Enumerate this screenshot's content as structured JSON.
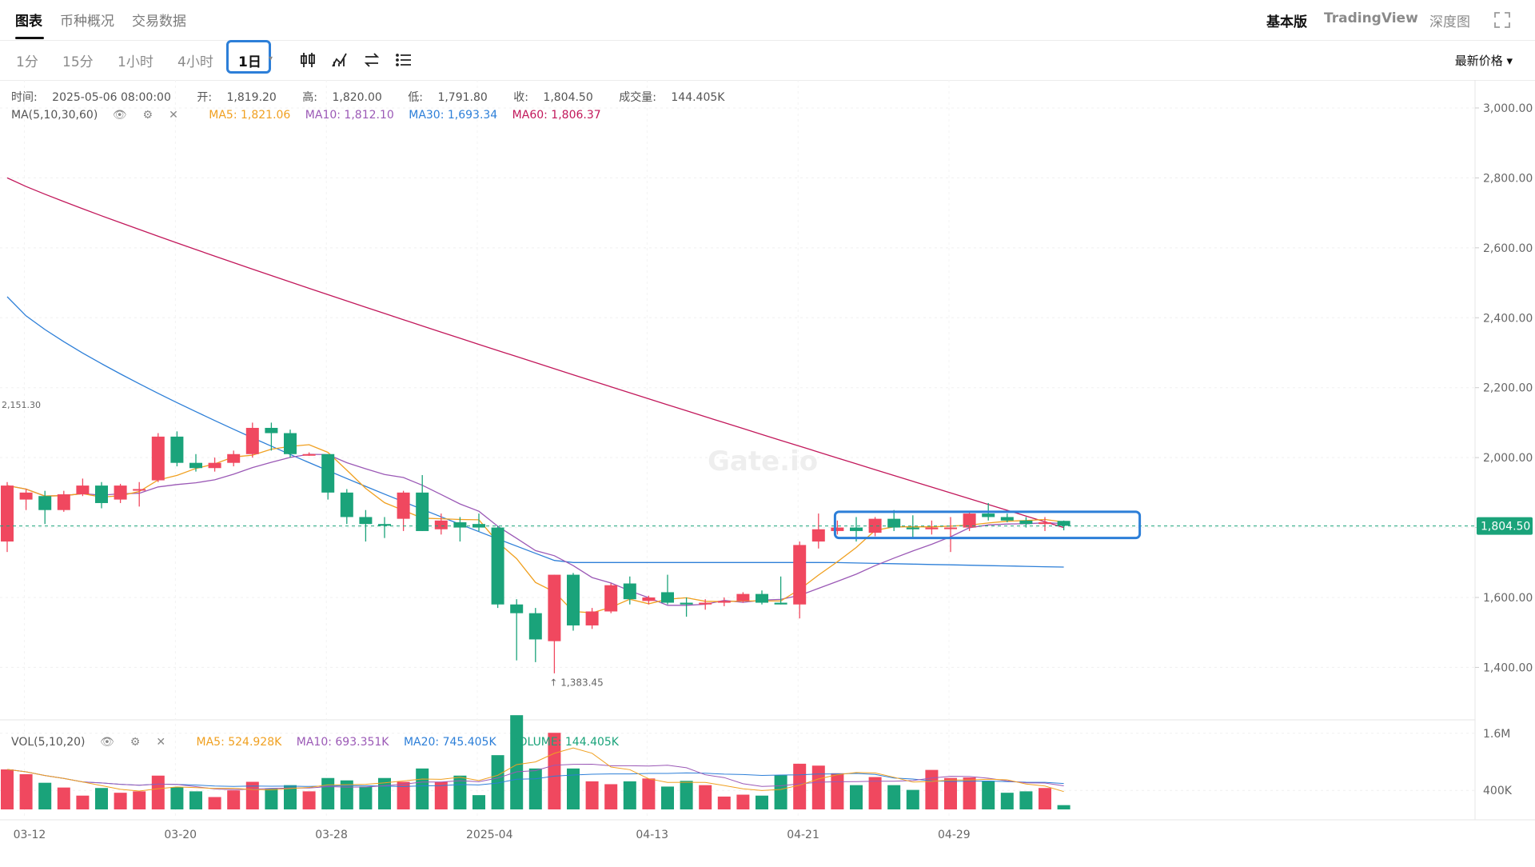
{
  "top_tabs": [
    "图表",
    "币种概况",
    "交易数据"
  ],
  "top_right": [
    "基本版",
    "TradingView",
    "深度图"
  ],
  "intervals": [
    "1分",
    "15分",
    "1小时",
    "4小时",
    "1日"
  ],
  "price_type": "最新价格 ▾",
  "ohlc": {
    "time_label": "时间:",
    "time": "2025-05-06 08:00:00",
    "open_label": "开:",
    "open": "1,819.20",
    "high_label": "高:",
    "high": "1,820.00",
    "low_label": "低:",
    "low": "1,791.80",
    "close_label": "收:",
    "close": "1,804.50",
    "volume_label": "成交量:",
    "volume": "144.405K"
  },
  "ma_legend": {
    "name": "MA(5,10,30,60)",
    "ma5": "MA5: 1,821.06",
    "ma10": "MA10: 1,812.10",
    "ma30": "MA30: 1,693.34",
    "ma60": "MA60: 1,806.37"
  },
  "vol_legend": {
    "name": "VOL(5,10,20)",
    "ma5": "MA5: 524.928K",
    "ma10": "MA10: 693.351K",
    "ma20": "MA20: 745.405K",
    "volume": "VOLUME: 144.405K"
  },
  "colors": {
    "up": "#f0485f",
    "down": "#1aa37a",
    "ma5": "#f0a020",
    "ma10": "#9b59b6",
    "ma30": "#2d7fd8",
    "ma60": "#c2185b",
    "accent": "#2d7fd8"
  },
  "chart_data": {
    "type": "candlestick",
    "price_axis_ticks": [
      "3,000.00",
      "2,800.00",
      "2,600.00",
      "2,400.00",
      "2,200.00",
      "2,000.00",
      "1,800.00",
      "1,600.00",
      "1,400.00"
    ],
    "volume_axis_ticks": [
      "1.6M",
      "400K"
    ],
    "x_ticks": [
      "03-12",
      "03-20",
      "03-28",
      "2025-04",
      "04-13",
      "04-21",
      "04-29"
    ],
    "ylim": [
      1250,
      3080
    ],
    "current_price": "1,804.50",
    "current_price_value": 1804.5,
    "high_marker": "2,151.30",
    "low_marker": "1,383.45",
    "watermark": "Gate.io",
    "candles": [
      {
        "o": 1760,
        "h": 1930,
        "l": 1730,
        "c": 1920,
        "v": 0.84
      },
      {
        "o": 1880,
        "h": 1910,
        "l": 1850,
        "c": 1900,
        "v": 0.74
      },
      {
        "o": 1890,
        "h": 1905,
        "l": 1810,
        "c": 1850,
        "v": 0.56
      },
      {
        "o": 1850,
        "h": 1905,
        "l": 1845,
        "c": 1895,
        "v": 0.46
      },
      {
        "o": 1895,
        "h": 1940,
        "l": 1890,
        "c": 1920,
        "v": 0.29
      },
      {
        "o": 1920,
        "h": 1930,
        "l": 1855,
        "c": 1870,
        "v": 0.45
      },
      {
        "o": 1880,
        "h": 1925,
        "l": 1870,
        "c": 1920,
        "v": 0.35
      },
      {
        "o": 1910,
        "h": 1930,
        "l": 1860,
        "c": 1910,
        "v": 0.38
      },
      {
        "o": 1935,
        "h": 2070,
        "l": 1930,
        "c": 2060,
        "v": 0.71
      },
      {
        "o": 2060,
        "h": 2075,
        "l": 1975,
        "c": 1985,
        "v": 0.47
      },
      {
        "o": 1985,
        "h": 2010,
        "l": 1960,
        "c": 1970,
        "v": 0.38
      },
      {
        "o": 1970,
        "h": 2000,
        "l": 1960,
        "c": 1985,
        "v": 0.26
      },
      {
        "o": 1985,
        "h": 2020,
        "l": 1975,
        "c": 2010,
        "v": 0.4
      },
      {
        "o": 2010,
        "h": 2100,
        "l": 2000,
        "c": 2085,
        "v": 0.58
      },
      {
        "o": 2085,
        "h": 2100,
        "l": 2020,
        "c": 2070,
        "v": 0.44
      },
      {
        "o": 2070,
        "h": 2080,
        "l": 2000,
        "c": 2010,
        "v": 0.51
      },
      {
        "o": 2010,
        "h": 2015,
        "l": 2005,
        "c": 2010,
        "v": 0.38
      },
      {
        "o": 2010,
        "h": 2010,
        "l": 1880,
        "c": 1900,
        "v": 0.66
      },
      {
        "o": 1900,
        "h": 1910,
        "l": 1810,
        "c": 1830,
        "v": 0.61
      },
      {
        "o": 1830,
        "h": 1850,
        "l": 1760,
        "c": 1810,
        "v": 0.48
      },
      {
        "o": 1810,
        "h": 1830,
        "l": 1770,
        "c": 1805,
        "v": 0.66
      },
      {
        "o": 1825,
        "h": 1905,
        "l": 1790,
        "c": 1900,
        "v": 0.58
      },
      {
        "o": 1900,
        "h": 1950,
        "l": 1790,
        "c": 1790,
        "v": 0.86
      },
      {
        "o": 1795,
        "h": 1840,
        "l": 1780,
        "c": 1820,
        "v": 0.58
      },
      {
        "o": 1815,
        "h": 1830,
        "l": 1760,
        "c": 1800,
        "v": 0.71
      },
      {
        "o": 1810,
        "h": 1840,
        "l": 1790,
        "c": 1800,
        "v": 0.3
      },
      {
        "o": 1800,
        "h": 1805,
        "l": 1570,
        "c": 1580,
        "v": 1.14
      },
      {
        "o": 1580,
        "h": 1595,
        "l": 1420,
        "c": 1555,
        "v": 1.98
      },
      {
        "o": 1555,
        "h": 1570,
        "l": 1415,
        "c": 1480,
        "v": 0.86
      },
      {
        "o": 1475,
        "h": 1665,
        "l": 1383,
        "c": 1665,
        "v": 1.61
      },
      {
        "o": 1665,
        "h": 1670,
        "l": 1505,
        "c": 1520,
        "v": 0.86
      },
      {
        "o": 1520,
        "h": 1570,
        "l": 1510,
        "c": 1560,
        "v": 0.59
      },
      {
        "o": 1560,
        "h": 1640,
        "l": 1555,
        "c": 1635,
        "v": 0.53
      },
      {
        "o": 1640,
        "h": 1660,
        "l": 1580,
        "c": 1595,
        "v": 0.59
      },
      {
        "o": 1590,
        "h": 1605,
        "l": 1580,
        "c": 1600,
        "v": 0.65
      },
      {
        "o": 1615,
        "h": 1665,
        "l": 1580,
        "c": 1585,
        "v": 0.48
      },
      {
        "o": 1585,
        "h": 1600,
        "l": 1545,
        "c": 1580,
        "v": 0.6
      },
      {
        "o": 1580,
        "h": 1595,
        "l": 1565,
        "c": 1585,
        "v": 0.51
      },
      {
        "o": 1585,
        "h": 1600,
        "l": 1575,
        "c": 1590,
        "v": 0.27
      },
      {
        "o": 1590,
        "h": 1615,
        "l": 1585,
        "c": 1610,
        "v": 0.31
      },
      {
        "o": 1610,
        "h": 1620,
        "l": 1580,
        "c": 1585,
        "v": 0.29
      },
      {
        "o": 1585,
        "h": 1660,
        "l": 1580,
        "c": 1580,
        "v": 0.72
      },
      {
        "o": 1580,
        "h": 1760,
        "l": 1540,
        "c": 1750,
        "v": 0.96
      },
      {
        "o": 1760,
        "h": 1840,
        "l": 1740,
        "c": 1795,
        "v": 0.92
      },
      {
        "o": 1790,
        "h": 1820,
        "l": 1780,
        "c": 1800,
        "v": 0.76
      },
      {
        "o": 1800,
        "h": 1830,
        "l": 1760,
        "c": 1790,
        "v": 0.51
      },
      {
        "o": 1785,
        "h": 1830,
        "l": 1775,
        "c": 1825,
        "v": 0.68
      },
      {
        "o": 1825,
        "h": 1850,
        "l": 1790,
        "c": 1800,
        "v": 0.51
      },
      {
        "o": 1800,
        "h": 1835,
        "l": 1770,
        "c": 1795,
        "v": 0.41
      },
      {
        "o": 1795,
        "h": 1820,
        "l": 1780,
        "c": 1800,
        "v": 0.83
      },
      {
        "o": 1800,
        "h": 1830,
        "l": 1730,
        "c": 1800,
        "v": 0.66
      },
      {
        "o": 1800,
        "h": 1845,
        "l": 1790,
        "c": 1840,
        "v": 0.67
      },
      {
        "o": 1840,
        "h": 1870,
        "l": 1820,
        "c": 1830,
        "v": 0.6
      },
      {
        "o": 1830,
        "h": 1840,
        "l": 1815,
        "c": 1820,
        "v": 0.35
      },
      {
        "o": 1820,
        "h": 1830,
        "l": 1800,
        "c": 1810,
        "v": 0.38
      },
      {
        "o": 1810,
        "h": 1830,
        "l": 1790,
        "c": 1815,
        "v": 0.45
      },
      {
        "o": 1819,
        "h": 1820,
        "l": 1792,
        "c": 1805,
        "v": 0.09
      }
    ]
  }
}
